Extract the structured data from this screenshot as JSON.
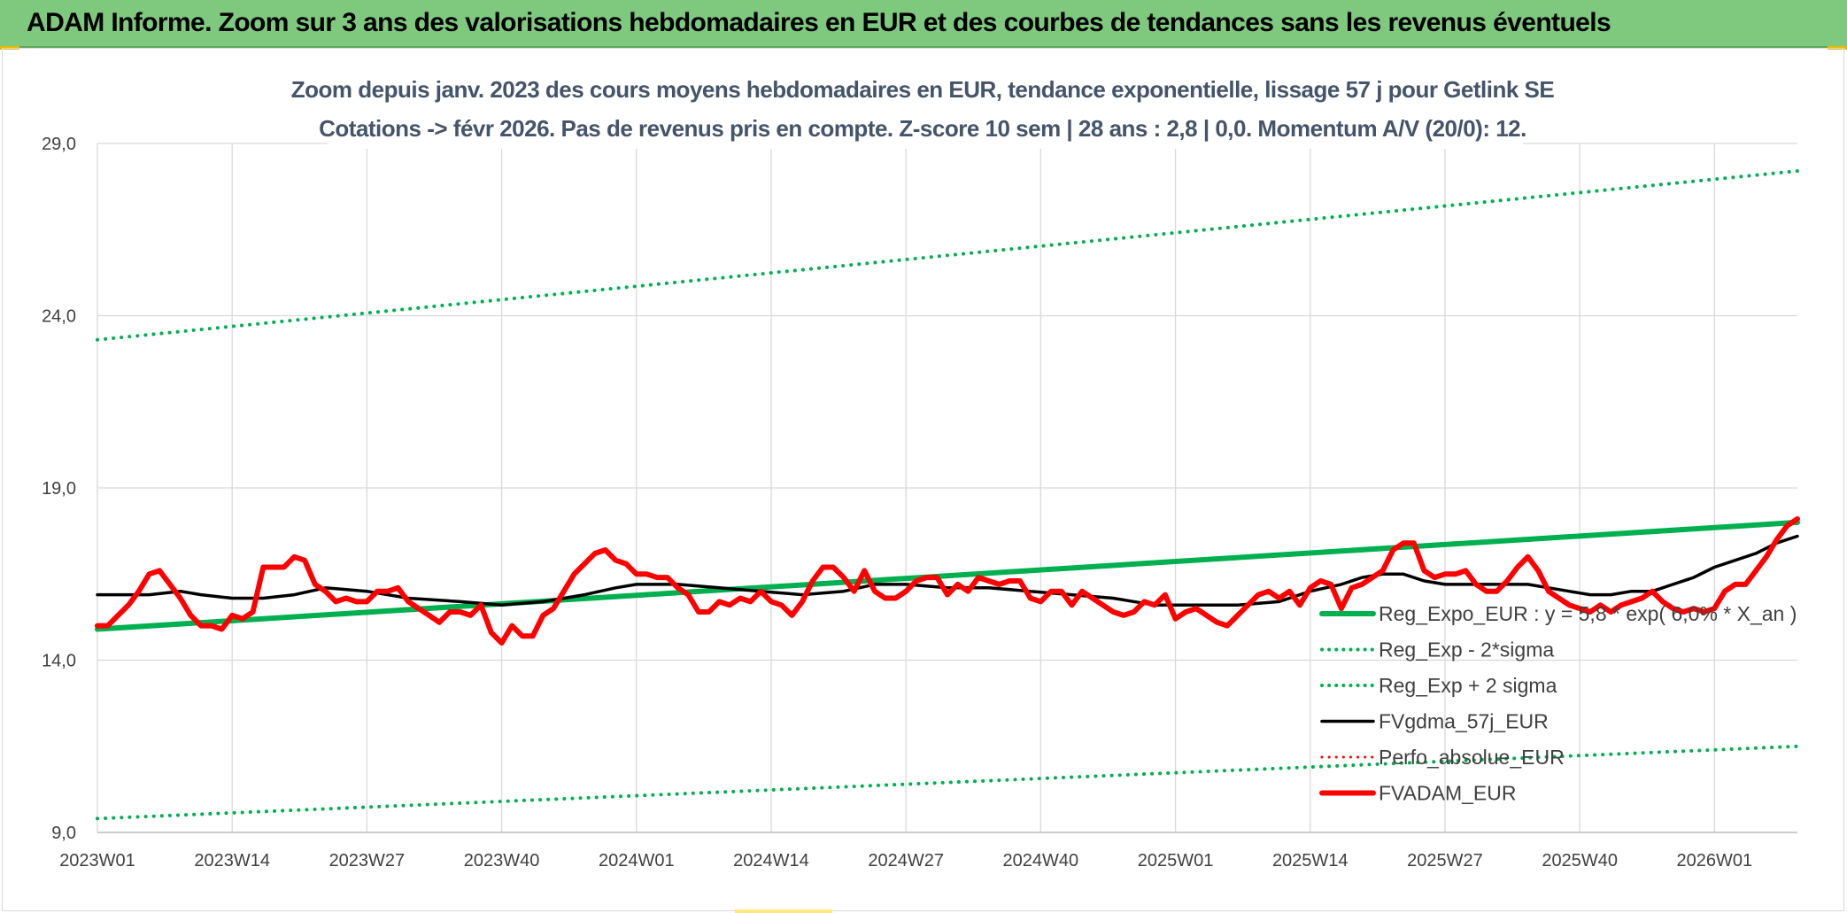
{
  "banner": {
    "title": "ADAM Informe. Zoom sur 3 ans des valorisations hebdomadaires en EUR et des courbes de tendances sans les revenus éventuels"
  },
  "chart_data": {
    "type": "line",
    "title_line1": "Zoom depuis janv. 2023 des cours moyens hebdomadaires en EUR, tendance exponentielle, lissage 57 j pour Getlink SE",
    "title_line2": "Cotations -> févr 2026. Pas de revenus pris en compte. Z-score 10 sem | 28 ans : 2,8 | 0,0. Momentum A/V (20/0): 12.",
    "ylim": [
      9,
      29
    ],
    "yticks": [
      "9,0",
      "14,0",
      "19,0",
      "24,0",
      "29,0"
    ],
    "ytick_values": [
      9,
      14,
      19,
      24,
      29
    ],
    "xticks": [
      "2023W01",
      "2023W14",
      "2023W27",
      "2023W40",
      "2024W01",
      "2024W14",
      "2024W27",
      "2024W40",
      "2025W01",
      "2025W14",
      "2025W27",
      "2025W40",
      "2026W01"
    ],
    "xtick_weeks": [
      0,
      13,
      26,
      39,
      52,
      65,
      78,
      91,
      104,
      117,
      130,
      143,
      156
    ],
    "x_max_week": 164,
    "grid": true,
    "legend_position": "right",
    "series": [
      {
        "name": "Reg_Expo_EUR : y = 5,8 * exp( 6,0% * X_an )",
        "style": "solid",
        "color": "#00b050",
        "width": 6,
        "x": [
          0,
          164
        ],
        "values": [
          14.9,
          18.0
        ]
      },
      {
        "name": "Reg_Exp - 2*sigma",
        "style": "dotted",
        "color": "#00b050",
        "width": 4,
        "x": [
          0,
          164
        ],
        "values": [
          9.4,
          11.5
        ]
      },
      {
        "name": "Reg_Exp + 2 sigma",
        "style": "dotted",
        "color": "#00b050",
        "width": 4,
        "x": [
          0,
          164
        ],
        "values": [
          23.3,
          28.2
        ]
      },
      {
        "name": "FVgdma_57j_EUR",
        "style": "solid",
        "color": "#000000",
        "width": 3.5,
        "x": [
          0,
          5,
          8,
          10,
          13,
          16,
          19,
          22,
          26,
          30,
          35,
          39,
          43,
          47,
          50,
          52,
          56,
          60,
          64,
          68,
          72,
          75,
          78,
          82,
          86,
          90,
          94,
          98,
          102,
          106,
          110,
          114,
          117,
          120,
          122,
          124,
          126,
          128,
          130,
          132,
          134,
          136,
          138,
          140,
          142,
          144,
          146,
          148,
          150,
          152,
          154,
          156,
          158,
          160,
          162,
          164
        ],
        "values": [
          15.9,
          15.9,
          16.0,
          15.9,
          15.8,
          15.8,
          15.9,
          16.1,
          16.0,
          15.8,
          15.7,
          15.6,
          15.7,
          15.9,
          16.1,
          16.2,
          16.2,
          16.1,
          16.0,
          15.9,
          16.0,
          16.2,
          16.2,
          16.1,
          16.1,
          16.0,
          15.9,
          15.8,
          15.6,
          15.6,
          15.6,
          15.7,
          16.0,
          16.2,
          16.4,
          16.5,
          16.5,
          16.3,
          16.2,
          16.2,
          16.2,
          16.2,
          16.2,
          16.1,
          16.0,
          15.9,
          15.9,
          16.0,
          16.0,
          16.2,
          16.4,
          16.7,
          16.9,
          17.1,
          17.4,
          17.6
        ]
      },
      {
        "name": "Perfo_absolue_EUR",
        "style": "dotted",
        "color": "#ff0000",
        "width": 3,
        "x": [],
        "values": []
      },
      {
        "name": "FVADAM_EUR",
        "style": "solid",
        "color": "#ff0000",
        "width": 6,
        "x": [
          0,
          1,
          2,
          3,
          4,
          5,
          6,
          7,
          8,
          9,
          10,
          11,
          12,
          13,
          14,
          15,
          16,
          17,
          18,
          19,
          20,
          21,
          22,
          23,
          24,
          25,
          26,
          27,
          28,
          29,
          30,
          31,
          32,
          33,
          34,
          35,
          36,
          37,
          38,
          39,
          40,
          41,
          42,
          43,
          44,
          45,
          46,
          47,
          48,
          49,
          50,
          51,
          52,
          53,
          54,
          55,
          56,
          57,
          58,
          59,
          60,
          61,
          62,
          63,
          64,
          65,
          66,
          67,
          68,
          69,
          70,
          71,
          72,
          73,
          74,
          75,
          76,
          77,
          78,
          79,
          80,
          81,
          82,
          83,
          84,
          85,
          86,
          87,
          88,
          89,
          90,
          91,
          92,
          93,
          94,
          95,
          96,
          97,
          98,
          99,
          100,
          101,
          102,
          103,
          104,
          105,
          106,
          107,
          108,
          109,
          110,
          111,
          112,
          113,
          114,
          115,
          116,
          117,
          118,
          119,
          120,
          121,
          122,
          123,
          124,
          125,
          126,
          127,
          128,
          129,
          130,
          131,
          132,
          133,
          134,
          135,
          136,
          137,
          138,
          139,
          140,
          141,
          142,
          143,
          144,
          145,
          146,
          147,
          148,
          149,
          150,
          151,
          152,
          153,
          154,
          155,
          156,
          157,
          158,
          159,
          160,
          161,
          162,
          163,
          164
        ],
        "values": [
          15.0,
          15.0,
          15.3,
          15.6,
          16.0,
          16.5,
          16.6,
          16.2,
          15.8,
          15.3,
          15.0,
          15.0,
          14.9,
          15.3,
          15.2,
          15.4,
          16.7,
          16.7,
          16.7,
          17.0,
          16.9,
          16.2,
          16.0,
          15.7,
          15.8,
          15.7,
          15.7,
          16.0,
          16.0,
          16.1,
          15.7,
          15.5,
          15.3,
          15.1,
          15.4,
          15.4,
          15.3,
          15.6,
          14.8,
          14.5,
          15.0,
          14.7,
          14.7,
          15.3,
          15.5,
          16.0,
          16.5,
          16.8,
          17.1,
          17.2,
          16.9,
          16.8,
          16.5,
          16.5,
          16.4,
          16.4,
          16.1,
          15.9,
          15.4,
          15.4,
          15.7,
          15.6,
          15.8,
          15.7,
          16.0,
          15.7,
          15.6,
          15.3,
          15.7,
          16.3,
          16.7,
          16.7,
          16.4,
          16.0,
          16.6,
          16.0,
          15.8,
          15.8,
          16.0,
          16.3,
          16.4,
          16.4,
          15.9,
          16.2,
          16.0,
          16.4,
          16.3,
          16.2,
          16.3,
          16.3,
          15.8,
          15.7,
          16.0,
          16.0,
          15.6,
          16.0,
          15.8,
          15.6,
          15.4,
          15.3,
          15.4,
          15.7,
          15.6,
          15.9,
          15.2,
          15.4,
          15.5,
          15.3,
          15.1,
          15.0,
          15.3,
          15.6,
          15.9,
          16.0,
          15.8,
          16.0,
          15.6,
          16.1,
          16.3,
          16.2,
          15.5,
          16.1,
          16.2,
          16.4,
          16.6,
          17.2,
          17.4,
          17.4,
          16.6,
          16.4,
          16.5,
          16.5,
          16.6,
          16.2,
          16.0,
          16.0,
          16.3,
          16.7,
          17.0,
          16.6,
          16.0,
          15.8,
          15.6,
          15.5,
          15.4,
          15.6,
          15.4,
          15.6,
          15.7,
          15.8,
          16.0,
          15.7,
          15.5,
          15.4,
          15.5,
          15.4,
          15.5,
          16.0,
          16.2,
          16.2,
          16.6,
          17.0,
          17.5,
          17.9,
          18.1
        ]
      }
    ]
  }
}
